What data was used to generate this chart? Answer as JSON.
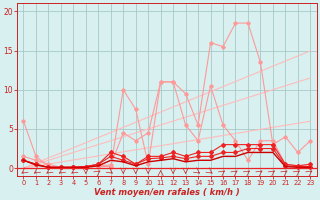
{
  "x": [
    0,
    1,
    2,
    3,
    4,
    5,
    6,
    7,
    8,
    9,
    10,
    11,
    12,
    13,
    14,
    15,
    16,
    17,
    18,
    19,
    20,
    21,
    22,
    23
  ],
  "line_pink1": [
    6.0,
    1.5,
    0.2,
    0.1,
    0.1,
    0.2,
    0.2,
    0.2,
    10.0,
    7.5,
    0.5,
    11.0,
    11.0,
    5.5,
    3.5,
    10.5,
    5.5,
    3.5,
    1.0,
    3.5,
    3.5,
    0.5,
    0.3,
    0.2
  ],
  "line_pink2": [
    1.5,
    1.0,
    0.5,
    0.1,
    0.1,
    0.2,
    0.3,
    0.4,
    4.5,
    3.5,
    4.5,
    11.0,
    11.0,
    9.5,
    5.5,
    16.0,
    15.5,
    18.5,
    18.5,
    13.5,
    3.0,
    4.0,
    2.0,
    3.5
  ],
  "trend1": [
    0,
    0.26,
    0.52,
    0.78,
    1.04,
    1.3,
    1.56,
    1.82,
    2.08,
    2.34,
    2.6,
    2.86,
    3.12,
    3.38,
    3.64,
    3.9,
    4.16,
    4.42,
    4.68,
    4.94,
    5.2,
    5.46,
    5.72,
    5.98
  ],
  "trend2": [
    0,
    0.5,
    1.0,
    1.5,
    2.0,
    2.5,
    3.0,
    3.5,
    4.0,
    4.5,
    5.0,
    5.5,
    6.0,
    6.5,
    7.0,
    7.5,
    8.0,
    8.5,
    9.0,
    9.5,
    10.0,
    10.5,
    11.0,
    11.5
  ],
  "trend3": [
    0,
    0.65,
    1.3,
    1.95,
    2.6,
    3.25,
    3.9,
    4.55,
    5.2,
    5.85,
    6.5,
    7.15,
    7.8,
    8.45,
    9.1,
    9.75,
    10.4,
    11.05,
    11.7,
    12.35,
    13.0,
    13.65,
    14.3,
    14.95
  ],
  "line_red1": [
    1.0,
    0.5,
    0.1,
    0.1,
    0.1,
    0.2,
    0.5,
    2.0,
    1.5,
    0.5,
    1.5,
    1.5,
    2.0,
    1.5,
    2.0,
    2.0,
    3.0,
    3.0,
    3.0,
    3.0,
    3.0,
    0.5,
    0.3,
    0.5
  ],
  "line_red2": [
    1.0,
    0.5,
    0.1,
    0.1,
    0.1,
    0.2,
    0.5,
    1.5,
    1.0,
    0.5,
    1.2,
    1.3,
    1.5,
    1.2,
    1.5,
    1.5,
    2.0,
    2.0,
    2.5,
    2.5,
    2.5,
    0.3,
    0.2,
    0.2
  ],
  "line_darkred": [
    1.0,
    0.4,
    0.1,
    0.1,
    0.1,
    0.1,
    0.3,
    1.0,
    0.8,
    0.3,
    0.8,
    1.0,
    1.2,
    0.8,
    1.0,
    1.0,
    1.5,
    1.5,
    2.0,
    2.0,
    2.0,
    0.2,
    0.1,
    0.1
  ],
  "bg_color": "#d8f0f0",
  "grid_color": "#a8c8c8",
  "pink_color": "#ff9999",
  "trend_color": "#ffbbbb",
  "red_color": "#ee2222",
  "xlabel": "Vent moyen/en rafales ( km/h )",
  "ylim": [
    -1.0,
    21
  ],
  "xlim": [
    -0.5,
    23.5
  ],
  "yticks": [
    0,
    5,
    10,
    15,
    20
  ],
  "xticks": [
    0,
    1,
    2,
    3,
    4,
    5,
    6,
    7,
    8,
    9,
    10,
    11,
    12,
    13,
    14,
    15,
    16,
    17,
    18,
    19,
    20,
    21,
    22,
    23
  ]
}
